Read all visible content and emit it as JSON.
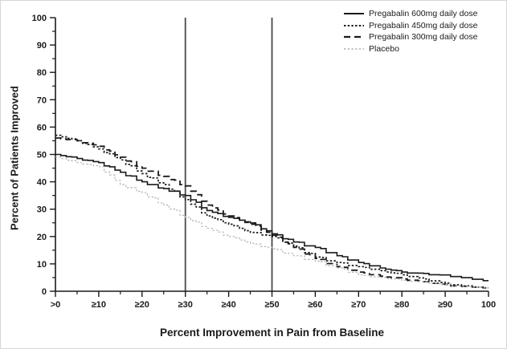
{
  "figure": {
    "y_axis_title": "Percent of Patients Improved",
    "x_axis_title": "Percent Improvement in Pain from Baseline"
  },
  "chart_data": {
    "type": "line",
    "subtype": "step-function (cumulative responder curves)",
    "title": "",
    "xlabel": "Percent Improvement in Pain from Baseline",
    "ylabel": "Percent of Patients Improved",
    "xlim": [
      0,
      100
    ],
    "ylim": [
      0,
      100
    ],
    "grid": false,
    "legend_position": "top-right",
    "x_tick_values": [
      0,
      10,
      20,
      30,
      40,
      50,
      60,
      70,
      80,
      90,
      100
    ],
    "x_tick_labels": [
      ">0",
      "≥10",
      "≥20",
      "≥30",
      "≥40",
      "≥50",
      "≥60",
      "≥70",
      "≥80",
      "≥90",
      "100"
    ],
    "y_tick_values": [
      0,
      10,
      20,
      30,
      40,
      50,
      60,
      70,
      80,
      90,
      100
    ],
    "y_tick_labels": [
      "0",
      "10",
      "20",
      "30",
      "40",
      "50",
      "60",
      "70",
      "80",
      "90",
      "100"
    ],
    "minor_tick_step": 5,
    "reference_lines_x": [
      30,
      50
    ],
    "axis_color": "#1a1a1a",
    "reference_line_color": "#4a4a4a",
    "x": [
      0,
      5,
      10,
      15,
      20,
      25,
      30,
      35,
      40,
      45,
      50,
      55,
      60,
      65,
      70,
      75,
      80,
      85,
      90,
      95,
      100
    ],
    "series": [
      {
        "name": "Pregabalin 600mg daily dose",
        "style": "solid",
        "color": "#1a1a1a",
        "values": [
          50,
          48.5,
          47,
          43.5,
          40,
          37.5,
          35,
          29.5,
          27,
          25,
          21,
          18,
          16,
          13,
          10.5,
          8.5,
          7,
          6.5,
          6,
          5,
          4
        ]
      },
      {
        "name": "Pregabalin 450mg daily dose",
        "style": "dotted",
        "color": "#1a1a1a",
        "values": [
          57,
          55,
          52,
          48,
          43,
          39,
          33.5,
          27.5,
          24.5,
          21.5,
          20,
          16.5,
          12.5,
          10.5,
          9,
          7.5,
          6,
          4.5,
          3,
          2,
          1.5
        ]
      },
      {
        "name": "Pregabalin 300mg daily dose",
        "style": "dashed",
        "color": "#1a1a1a",
        "values": [
          56,
          55,
          53,
          49,
          45,
          42,
          38.5,
          31.5,
          27.5,
          24.5,
          20.5,
          16,
          12,
          9,
          7,
          5.5,
          4.5,
          3.5,
          2.5,
          2,
          1.5
        ]
      },
      {
        "name": "Placebo",
        "style": "dotted",
        "color": "#b3b3b3",
        "values": [
          49,
          47,
          45.5,
          39,
          36,
          31.5,
          27,
          23,
          20,
          17.5,
          15.5,
          13,
          11,
          8.5,
          6,
          5,
          4,
          3.5,
          2.5,
          2,
          1.5
        ]
      }
    ]
  }
}
